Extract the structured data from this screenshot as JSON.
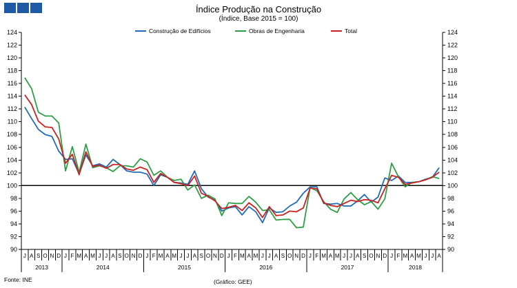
{
  "header": {
    "title": "Índice Produção na Construção",
    "subtitle": "(Índice, Base 2015 = 100)",
    "brand_color": "#1f5aa6"
  },
  "footer": {
    "source": "Fonte: INE",
    "credit": "(Gráfico: GEE)"
  },
  "chart_data": {
    "type": "line",
    "title": "Índice Produção na Construção",
    "subtitle": "(Índice, Base 2015 = 100)",
    "xlabel": "",
    "ylabel": "",
    "ylim": [
      90,
      124
    ],
    "yticks": [
      90,
      92,
      94,
      96,
      98,
      100,
      102,
      104,
      106,
      108,
      110,
      112,
      114,
      116,
      118,
      120,
      122,
      124
    ],
    "reference_line": 100,
    "grid": false,
    "legend_position": "top",
    "months": [
      "J",
      "A",
      "S",
      "O",
      "N",
      "D",
      "J",
      "F",
      "M",
      "A",
      "M",
      "J",
      "J",
      "A",
      "S",
      "O",
      "N",
      "D",
      "J",
      "F",
      "M",
      "A",
      "M",
      "J",
      "J",
      "A",
      "S",
      "O",
      "N",
      "D",
      "J",
      "F",
      "M",
      "A",
      "M",
      "J",
      "J",
      "A",
      "S",
      "O",
      "N",
      "D",
      "J",
      "F",
      "M",
      "A",
      "M",
      "J",
      "J",
      "A",
      "S",
      "O",
      "N",
      "D",
      "J",
      "F",
      "M",
      "A",
      "M",
      "J",
      "J",
      "A"
    ],
    "years": [
      {
        "label": "2013",
        "start": 0,
        "count": 6
      },
      {
        "label": "2014",
        "start": 6,
        "count": 12
      },
      {
        "label": "2015",
        "start": 18,
        "count": 12
      },
      {
        "label": "2016",
        "start": 30,
        "count": 12
      },
      {
        "label": "2017",
        "start": 42,
        "count": 12
      },
      {
        "label": "2018",
        "start": 54,
        "count": 8
      }
    ],
    "series": [
      {
        "name": "Construção de Edifícios",
        "color": "#1f6bb5",
        "values": [
          112.3,
          110.5,
          108.8,
          108.0,
          107.7,
          105.4,
          104.1,
          104.2,
          101.8,
          104.8,
          103.1,
          103.4,
          102.9,
          104.1,
          103.3,
          102.3,
          102.1,
          102.1,
          101.8,
          100.0,
          101.7,
          101.3,
          100.5,
          100.4,
          100.2,
          102.3,
          99.5,
          98.2,
          97.7,
          96.0,
          96.5,
          96.7,
          95.4,
          96.7,
          95.9,
          94.2,
          96.5,
          95.8,
          95.9,
          96.8,
          97.4,
          98.8,
          99.8,
          99.8,
          97.2,
          97.1,
          97.2,
          96.8,
          96.8,
          97.6,
          98.6,
          97.4,
          98.2,
          101.2,
          100.8,
          101.5,
          100.5,
          100.5,
          100.6,
          101.0,
          101.3,
          102.8
        ]
      },
      {
        "name": "Obras de Engenharia",
        "color": "#2e9e44",
        "values": [
          116.9,
          115.2,
          111.5,
          110.9,
          110.9,
          109.8,
          102.3,
          106.1,
          102.1,
          106.5,
          102.8,
          103.1,
          102.8,
          102.2,
          103.1,
          103.1,
          102.9,
          104.2,
          103.7,
          101.6,
          102.3,
          101.3,
          100.8,
          101.0,
          99.3,
          100.1,
          98.0,
          98.5,
          97.9,
          95.3,
          97.3,
          97.2,
          97.2,
          98.3,
          97.4,
          96.1,
          96.2,
          94.6,
          94.7,
          94.7,
          93.4,
          93.5,
          99.7,
          99.2,
          97.5,
          96.3,
          95.8,
          97.9,
          98.9,
          97.8,
          97.0,
          97.5,
          96.3,
          97.9,
          103.5,
          101.4,
          99.8,
          100.5,
          100.6,
          100.9,
          101.4,
          101.1
        ]
      },
      {
        "name": "Total",
        "color": "#cc2020",
        "values": [
          114.2,
          112.7,
          110.1,
          109.2,
          109.1,
          107.3,
          103.5,
          104.9,
          101.7,
          105.3,
          103.0,
          103.2,
          102.7,
          103.3,
          103.3,
          102.6,
          102.4,
          102.9,
          102.5,
          100.5,
          101.9,
          101.3,
          100.5,
          100.3,
          100.0,
          101.5,
          98.8,
          98.3,
          97.6,
          96.4,
          96.6,
          96.9,
          96.1,
          97.3,
          96.5,
          95.0,
          96.7,
          95.3,
          95.4,
          96.0,
          95.9,
          96.5,
          99.6,
          99.5,
          97.3,
          96.9,
          96.7,
          97.2,
          97.7,
          97.5,
          97.8,
          97.7,
          97.3,
          99.5,
          101.6,
          101.3,
          100.2,
          100.4,
          100.6,
          100.9,
          101.3,
          102.1
        ]
      }
    ]
  }
}
